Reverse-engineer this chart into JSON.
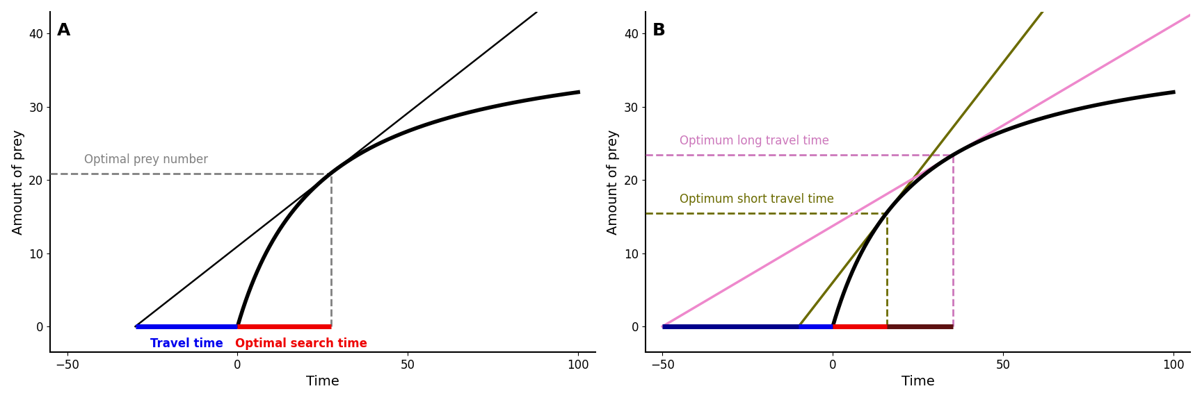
{
  "xlim": [
    -55,
    105
  ],
  "ylim": [
    -3.5,
    43
  ],
  "xticks": [
    -50,
    0,
    50,
    100
  ],
  "yticks": [
    0,
    10,
    20,
    30,
    40
  ],
  "xlabel": "Time",
  "ylabel": "Amount of prey",
  "curve_a": 4.0,
  "curve_b": 0.62,
  "bg_color": "#ffffff",
  "panel_A": {
    "label": "A",
    "travel_time": -30,
    "travel_bar_color": "#0000ee",
    "search_bar_color": "#ee0000",
    "dashed_color": "#808080",
    "annotation_text": "Optimal prey number",
    "travel_label": "Travel time",
    "search_label": "Optimal search time"
  },
  "panel_B": {
    "label": "B",
    "short_travel_time": -10,
    "long_travel_time": -50,
    "short_tangent_color": "#6b6b00",
    "long_tangent_color": "#ee88cc",
    "short_travel_bar_color": "#0000ee",
    "short_search_bar_color": "#ee0000",
    "long_travel_bar_color": "#00008b",
    "long_search_bar_color": "#5c1010",
    "short_dashed_color": "#6b6b00",
    "long_dashed_color": "#cc77bb",
    "label_short": "Optimum short travel time",
    "label_long": "Optimum long travel time"
  }
}
